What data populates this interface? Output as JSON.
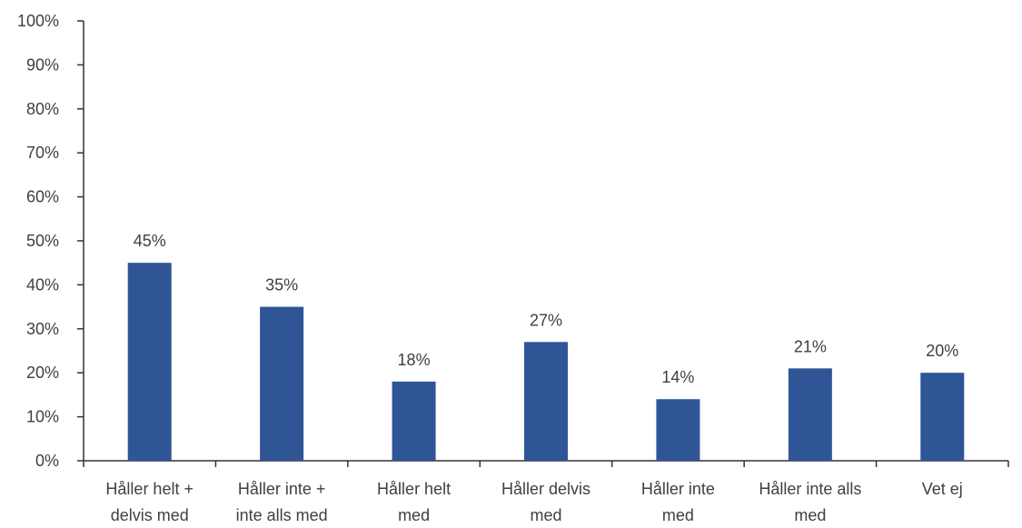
{
  "chart_data": {
    "type": "bar",
    "title": "",
    "xlabel": "",
    "ylabel": "",
    "categories": [
      [
        "Håller helt +",
        "delvis med"
      ],
      [
        "Håller inte +",
        "inte alls med"
      ],
      [
        "Håller helt",
        "med"
      ],
      [
        "Håller delvis",
        "med"
      ],
      [
        "Håller inte",
        "med"
      ],
      [
        "Håller inte alls",
        "med"
      ],
      [
        "Vet ej"
      ]
    ],
    "values": [
      45,
      35,
      18,
      27,
      14,
      21,
      20
    ],
    "data_labels": [
      "45%",
      "35%",
      "18%",
      "27%",
      "14%",
      "21%",
      "20%"
    ],
    "ylim": [
      0,
      100
    ],
    "y_ticks": [
      0,
      10,
      20,
      30,
      40,
      50,
      60,
      70,
      80,
      90,
      100
    ],
    "y_tick_labels": [
      "0%",
      "10%",
      "20%",
      "30%",
      "40%",
      "50%",
      "60%",
      "70%",
      "80%",
      "90%",
      "100%"
    ],
    "grid": false,
    "legend": "none",
    "colors": {
      "bar": "#2F5597",
      "axis": "#333333",
      "text": "#404040"
    }
  }
}
